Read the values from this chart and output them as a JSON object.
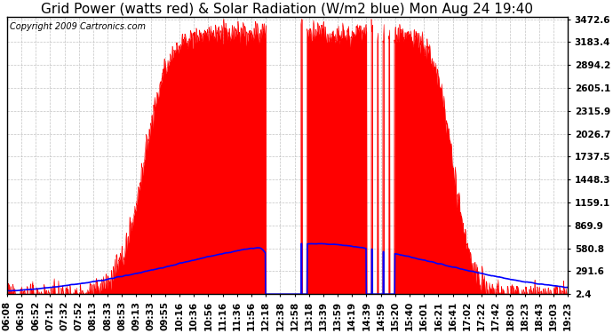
{
  "title": "Grid Power (watts red) & Solar Radiation (W/m2 blue) Mon Aug 24 19:40",
  "copyright": "Copyright 2009 Cartronics.com",
  "background_color": "#ffffff",
  "plot_bg_color": "#ffffff",
  "grid_color": "#aaaaaa",
  "yticks": [
    2.4,
    291.6,
    580.8,
    869.9,
    1159.1,
    1448.3,
    1737.5,
    2026.7,
    2315.9,
    2605.1,
    2894.2,
    3183.4,
    3472.6
  ],
  "ymin": 2.4,
  "ymax": 3472.6,
  "x_labels": [
    "06:08",
    "06:30",
    "06:52",
    "07:12",
    "07:32",
    "07:52",
    "08:13",
    "08:33",
    "08:53",
    "09:13",
    "09:33",
    "09:55",
    "10:16",
    "10:36",
    "10:56",
    "11:16",
    "11:36",
    "11:56",
    "12:18",
    "12:38",
    "12:58",
    "13:18",
    "13:39",
    "13:59",
    "14:19",
    "14:39",
    "14:59",
    "15:20",
    "15:40",
    "16:01",
    "16:21",
    "16:41",
    "17:02",
    "17:22",
    "17:42",
    "18:03",
    "18:23",
    "18:43",
    "19:03",
    "19:23"
  ],
  "red_fill_color": "#ff0000",
  "blue_line_color": "#0000ff",
  "title_fontsize": 11,
  "axis_fontsize": 7.5,
  "copyright_fontsize": 7,
  "n_labels": 40
}
